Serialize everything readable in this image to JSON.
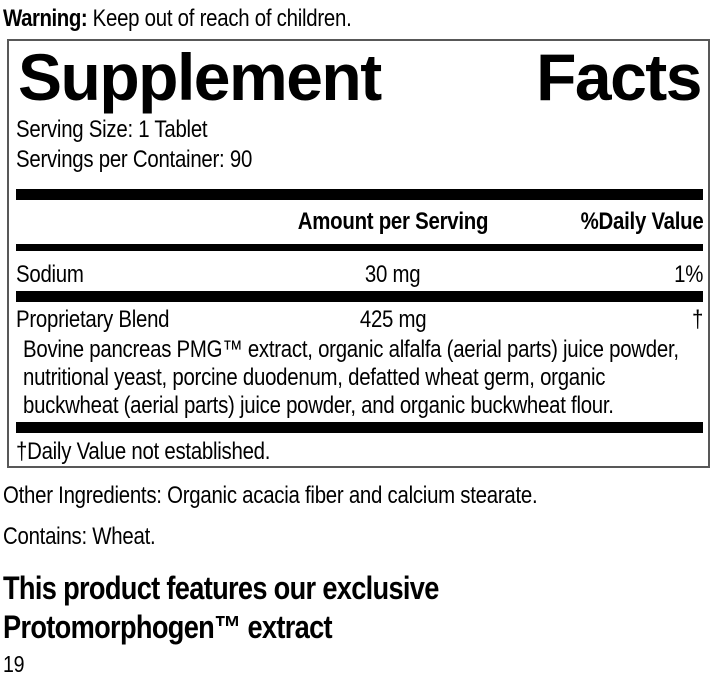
{
  "warning": {
    "label": "Warning:",
    "text": " Keep out of reach of children."
  },
  "panel": {
    "title": {
      "word1": "Supplement",
      "word2": "Facts"
    },
    "serving_size": "Serving Size: 1 Tablet",
    "servings_per_container": "Servings per Container: 90",
    "columns": {
      "amount": "Amount per Serving",
      "daily_value": "%Daily Value"
    },
    "rows": [
      {
        "name": "Sodium",
        "amount": "30 mg",
        "dv": "1%"
      },
      {
        "name": "Proprietary Blend",
        "amount": "425 mg",
        "dv": "†"
      }
    ],
    "blend_description_lines": [
      "Bovine pancreas PMG™ extract, organic alfalfa (aerial parts) juice powder,",
      "nutritional yeast, porcine duodenum, defatted wheat germ, organic",
      "buckwheat (aerial parts) juice powder, and organic buckwheat flour."
    ],
    "footnote": "†Daily Value not established."
  },
  "other_ingredients": "Other Ingredients: Organic acacia fiber and calcium stearate.",
  "contains": "Contains: Wheat.",
  "feature": {
    "line1": "This product features our exclusive",
    "line2": "Protomorphogen™ extract"
  },
  "page_number": "19",
  "colors": {
    "text": "#000000",
    "bar": "#000000",
    "border": "#585858",
    "background": "#ffffff"
  }
}
